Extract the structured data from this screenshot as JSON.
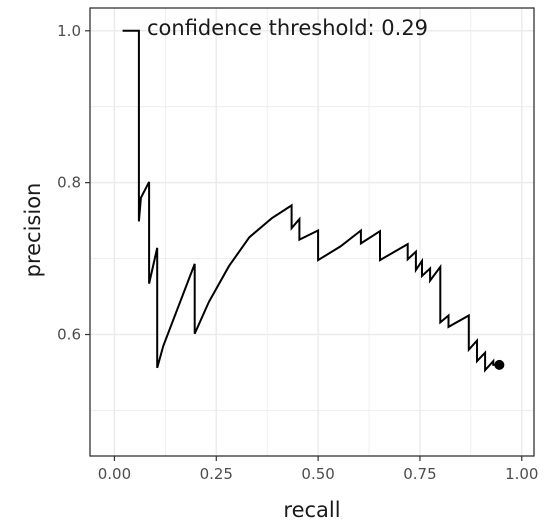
{
  "chart_data": {
    "type": "line",
    "title": "",
    "xlabel": "recall",
    "ylabel": "precision",
    "xlim": [
      -0.06,
      1.03
    ],
    "ylim": [
      0.44,
      1.03
    ],
    "xticks": [
      0.0,
      0.25,
      0.5,
      0.75,
      1.0
    ],
    "xtick_labels": [
      "0.00",
      "0.25",
      "0.50",
      "0.75",
      "1.00"
    ],
    "yticks": [
      0.6,
      0.8,
      1.0
    ],
    "ytick_labels": [
      "0.6",
      "0.8",
      "1.0"
    ],
    "grid": true,
    "annotation": "confidence threshold: 0.29",
    "colors": {
      "line": "#000000",
      "grid": "#ebebeb",
      "panel_border": "#333333",
      "tick_text": "#4d4d4d"
    },
    "series": [
      {
        "x": [
          0.02,
          0.06,
          0.06,
          0.065,
          0.085,
          0.085,
          0.105,
          0.105,
          0.12,
          0.197,
          0.197,
          0.232,
          0.281,
          0.331,
          0.386,
          0.435,
          0.435,
          0.454,
          0.454,
          0.5,
          0.5,
          0.555,
          0.605,
          0.605,
          0.652,
          0.652,
          0.72,
          0.72,
          0.74,
          0.74,
          0.755,
          0.755,
          0.775,
          0.775,
          0.8,
          0.8,
          0.82,
          0.82,
          0.87,
          0.87,
          0.89,
          0.89,
          0.91,
          0.91,
          0.93,
          0.93,
          0.945
        ],
        "y": [
          1.0,
          1.0,
          0.749,
          0.78,
          0.801,
          0.667,
          0.714,
          0.556,
          0.585,
          0.693,
          0.601,
          0.643,
          0.69,
          0.728,
          0.753,
          0.77,
          0.74,
          0.752,
          0.725,
          0.737,
          0.698,
          0.716,
          0.737,
          0.72,
          0.736,
          0.698,
          0.719,
          0.699,
          0.709,
          0.685,
          0.697,
          0.677,
          0.687,
          0.671,
          0.689,
          0.616,
          0.625,
          0.61,
          0.625,
          0.58,
          0.592,
          0.565,
          0.576,
          0.553,
          0.565,
          0.56,
          0.56
        ]
      }
    ],
    "endpoint": {
      "x": 0.945,
      "y": 0.56
    }
  }
}
